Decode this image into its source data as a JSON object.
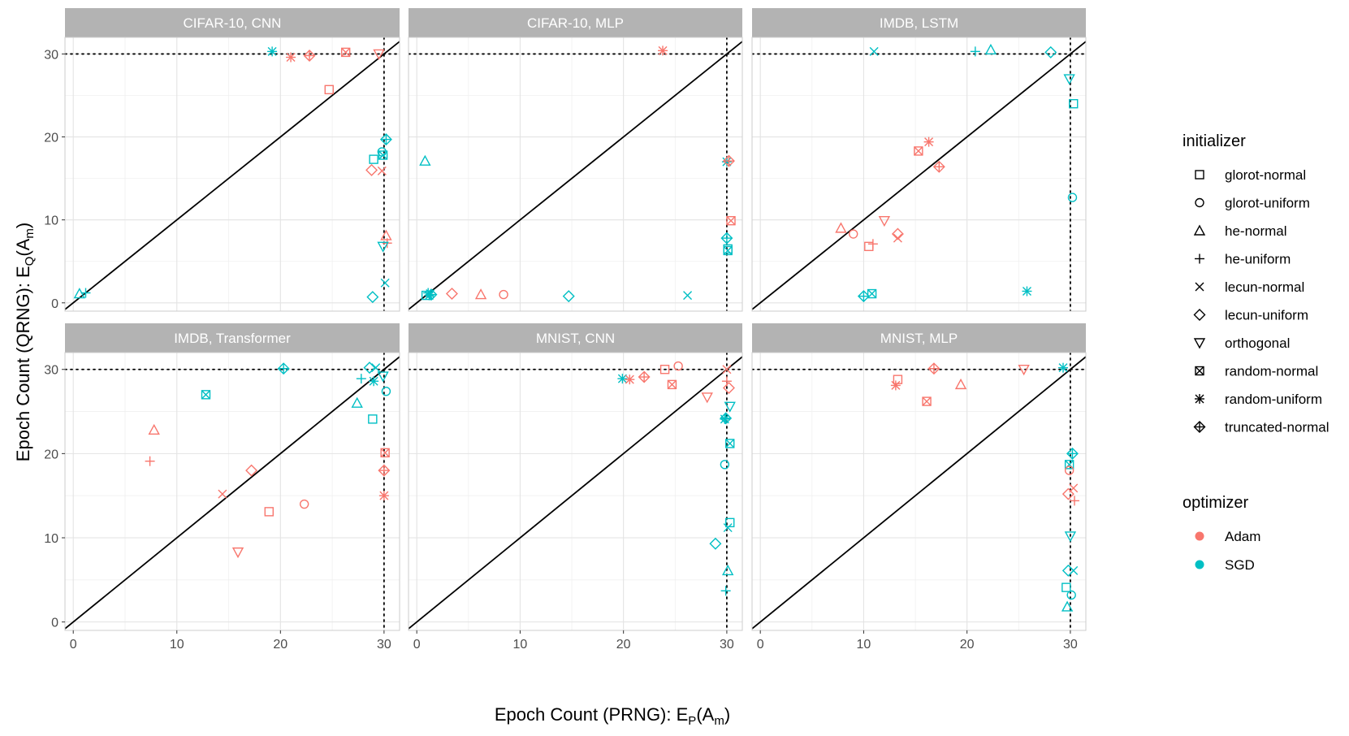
{
  "chart_data": {
    "type": "scatter",
    "xlabel": "Epoch Count (PRNG): E",
    "xlabel_sub": "P",
    "xlabel_arg": "(A",
    "xlabel_arg_sub": "m",
    "xlabel_close": ")",
    "ylabel": "Epoch Count (QRNG): E",
    "ylabel_sub": "Q",
    "ylabel_arg": "(A",
    "ylabel_arg_sub": "m",
    "ylabel_close": ")",
    "xlim": [
      -0.8,
      31.5
    ],
    "ylim": [
      -1,
      32
    ],
    "xticks": [
      0,
      10,
      20,
      30
    ],
    "yticks": [
      0,
      10,
      20,
      30
    ],
    "reference_lines": {
      "diagonal": "y = x",
      "dotted_x": 30,
      "dotted_y": 30
    },
    "legend": {
      "initializer_title": "initializer",
      "initializers": [
        "glorot-normal",
        "glorot-uniform",
        "he-normal",
        "he-uniform",
        "lecun-normal",
        "lecun-uniform",
        "orthogonal",
        "random-normal",
        "random-uniform",
        "truncated-normal"
      ],
      "optimizer_title": "optimizer",
      "optimizers": [
        {
          "name": "Adam",
          "color": "#F8766D"
        },
        {
          "name": "SGD",
          "color": "#00BFC4"
        }
      ]
    },
    "panels": [
      {
        "title": "CIFAR-10, CNN",
        "points": [
          {
            "x": 19.2,
            "y": 30.3,
            "init": "random-uniform",
            "opt": "SGD"
          },
          {
            "x": 21,
            "y": 29.6,
            "init": "random-uniform",
            "opt": "Adam"
          },
          {
            "x": 22.8,
            "y": 29.8,
            "init": "truncated-normal",
            "opt": "Adam"
          },
          {
            "x": 26.3,
            "y": 30.2,
            "init": "random-normal",
            "opt": "Adam"
          },
          {
            "x": 29.5,
            "y": 30,
            "init": "orthogonal",
            "opt": "Adam"
          },
          {
            "x": 24.7,
            "y": 25.7,
            "init": "glorot-normal",
            "opt": "Adam"
          },
          {
            "x": 29,
            "y": 17.3,
            "init": "glorot-normal",
            "opt": "SGD"
          },
          {
            "x": 29.8,
            "y": 18.2,
            "init": "glorot-uniform",
            "opt": "SGD"
          },
          {
            "x": 29.9,
            "y": 17.8,
            "init": "random-normal",
            "opt": "SGD"
          },
          {
            "x": 30.2,
            "y": 19.7,
            "init": "truncated-normal",
            "opt": "SGD"
          },
          {
            "x": 28.8,
            "y": 16,
            "init": "lecun-uniform",
            "opt": "Adam"
          },
          {
            "x": 29.8,
            "y": 15.9,
            "init": "lecun-normal",
            "opt": "Adam"
          },
          {
            "x": 30.2,
            "y": 8.1,
            "init": "he-normal",
            "opt": "Adam"
          },
          {
            "x": 30.3,
            "y": 7.2,
            "init": "he-uniform",
            "opt": "Adam"
          },
          {
            "x": 29.9,
            "y": 6.8,
            "init": "orthogonal",
            "opt": "SGD"
          },
          {
            "x": 30.1,
            "y": 2.4,
            "init": "lecun-normal",
            "opt": "SGD"
          },
          {
            "x": 28.9,
            "y": 0.7,
            "init": "lecun-uniform",
            "opt": "SGD"
          },
          {
            "x": 0.6,
            "y": 1.1,
            "init": "he-normal",
            "opt": "SGD"
          },
          {
            "x": 1.2,
            "y": 1.2,
            "init": "he-uniform",
            "opt": "SGD"
          }
        ]
      },
      {
        "title": "CIFAR-10, MLP",
        "points": [
          {
            "x": 23.8,
            "y": 30.4,
            "init": "random-uniform",
            "opt": "Adam"
          },
          {
            "x": 0.8,
            "y": 17.1,
            "init": "he-normal",
            "opt": "SGD"
          },
          {
            "x": 30,
            "y": 17,
            "init": "random-uniform",
            "opt": "SGD"
          },
          {
            "x": 30.2,
            "y": 17.1,
            "init": "truncated-normal",
            "opt": "Adam"
          },
          {
            "x": 30.4,
            "y": 9.9,
            "init": "random-normal",
            "opt": "Adam"
          },
          {
            "x": 30,
            "y": 7.8,
            "init": "truncated-normal",
            "opt": "SGD"
          },
          {
            "x": 30.1,
            "y": 6.3,
            "init": "random-normal",
            "opt": "SGD"
          },
          {
            "x": 30.1,
            "y": 6.5,
            "init": "glorot-normal",
            "opt": "SGD"
          },
          {
            "x": 3.4,
            "y": 1.1,
            "init": "lecun-uniform",
            "opt": "Adam"
          },
          {
            "x": 6.2,
            "y": 1,
            "init": "he-normal",
            "opt": "Adam"
          },
          {
            "x": 8.4,
            "y": 1,
            "init": "glorot-uniform",
            "opt": "Adam"
          },
          {
            "x": 14.7,
            "y": 0.8,
            "init": "lecun-uniform",
            "opt": "SGD"
          },
          {
            "x": 26.2,
            "y": 0.9,
            "init": "lecun-normal",
            "opt": "SGD"
          },
          {
            "x": 0.9,
            "y": 0.9,
            "init": "glorot-normal",
            "opt": "SGD"
          },
          {
            "x": 1.1,
            "y": 1.2,
            "init": "he-uniform",
            "opt": "SGD"
          },
          {
            "x": 1.2,
            "y": 0.9,
            "init": "random-uniform",
            "opt": "SGD"
          },
          {
            "x": 1.4,
            "y": 1,
            "init": "truncated-normal",
            "opt": "SGD"
          },
          {
            "x": 1.3,
            "y": 1.1,
            "init": "lecun-normal",
            "opt": "SGD"
          }
        ]
      },
      {
        "title": "IMDB, LSTM",
        "points": [
          {
            "x": 11,
            "y": 30.3,
            "init": "lecun-normal",
            "opt": "SGD"
          },
          {
            "x": 20.8,
            "y": 30.3,
            "init": "he-uniform",
            "opt": "SGD"
          },
          {
            "x": 22.3,
            "y": 30.5,
            "init": "he-normal",
            "opt": "SGD"
          },
          {
            "x": 28.1,
            "y": 30.2,
            "init": "lecun-uniform",
            "opt": "SGD"
          },
          {
            "x": 29.9,
            "y": 27,
            "init": "orthogonal",
            "opt": "SGD"
          },
          {
            "x": 30.3,
            "y": 24,
            "init": "glorot-normal",
            "opt": "SGD"
          },
          {
            "x": 16.3,
            "y": 19.4,
            "init": "random-uniform",
            "opt": "Adam"
          },
          {
            "x": 15.3,
            "y": 18.3,
            "init": "random-normal",
            "opt": "Adam"
          },
          {
            "x": 17.3,
            "y": 16.4,
            "init": "truncated-normal",
            "opt": "Adam"
          },
          {
            "x": 30.2,
            "y": 12.7,
            "init": "glorot-uniform",
            "opt": "SGD"
          },
          {
            "x": 12,
            "y": 9.9,
            "init": "orthogonal",
            "opt": "Adam"
          },
          {
            "x": 7.8,
            "y": 9,
            "init": "he-normal",
            "opt": "Adam"
          },
          {
            "x": 9,
            "y": 8.3,
            "init": "glorot-uniform",
            "opt": "Adam"
          },
          {
            "x": 13.3,
            "y": 8.3,
            "init": "lecun-uniform",
            "opt": "Adam"
          },
          {
            "x": 13.3,
            "y": 7.8,
            "init": "lecun-normal",
            "opt": "Adam"
          },
          {
            "x": 10.9,
            "y": 7.1,
            "init": "he-uniform",
            "opt": "Adam"
          },
          {
            "x": 10.5,
            "y": 6.8,
            "init": "glorot-normal",
            "opt": "Adam"
          },
          {
            "x": 10.8,
            "y": 1.1,
            "init": "random-normal",
            "opt": "SGD"
          },
          {
            "x": 10,
            "y": 0.8,
            "init": "truncated-normal",
            "opt": "SGD"
          },
          {
            "x": 25.8,
            "y": 1.4,
            "init": "random-uniform",
            "opt": "SGD"
          }
        ]
      },
      {
        "title": "IMDB, Transformer",
        "points": [
          {
            "x": 20.3,
            "y": 30.1,
            "init": "truncated-normal",
            "opt": "SGD"
          },
          {
            "x": 28.6,
            "y": 30.2,
            "init": "lecun-uniform",
            "opt": "SGD"
          },
          {
            "x": 29.2,
            "y": 30.2,
            "init": "lecun-normal",
            "opt": "SGD"
          },
          {
            "x": 29.9,
            "y": 29.2,
            "init": "orthogonal",
            "opt": "SGD"
          },
          {
            "x": 27.8,
            "y": 28.9,
            "init": "he-uniform",
            "opt": "SGD"
          },
          {
            "x": 29,
            "y": 28.6,
            "init": "random-uniform",
            "opt": "SGD"
          },
          {
            "x": 30.2,
            "y": 27.4,
            "init": "glorot-uniform",
            "opt": "SGD"
          },
          {
            "x": 12.8,
            "y": 27,
            "init": "random-normal",
            "opt": "SGD"
          },
          {
            "x": 27.4,
            "y": 26,
            "init": "he-normal",
            "opt": "SGD"
          },
          {
            "x": 28.9,
            "y": 24.1,
            "init": "glorot-normal",
            "opt": "SGD"
          },
          {
            "x": 7.8,
            "y": 22.8,
            "init": "he-normal",
            "opt": "Adam"
          },
          {
            "x": 30.1,
            "y": 20.1,
            "init": "random-normal",
            "opt": "Adam"
          },
          {
            "x": 7.4,
            "y": 19.1,
            "init": "he-uniform",
            "opt": "Adam"
          },
          {
            "x": 17.2,
            "y": 18,
            "init": "lecun-uniform",
            "opt": "Adam"
          },
          {
            "x": 30,
            "y": 18,
            "init": "truncated-normal",
            "opt": "Adam"
          },
          {
            "x": 14.4,
            "y": 15.2,
            "init": "lecun-normal",
            "opt": "Adam"
          },
          {
            "x": 30,
            "y": 15,
            "init": "random-uniform",
            "opt": "Adam"
          },
          {
            "x": 22.3,
            "y": 14,
            "init": "glorot-uniform",
            "opt": "Adam"
          },
          {
            "x": 18.9,
            "y": 13.1,
            "init": "glorot-normal",
            "opt": "Adam"
          },
          {
            "x": 15.9,
            "y": 8.3,
            "init": "orthogonal",
            "opt": "Adam"
          }
        ]
      },
      {
        "title": "MNIST, CNN",
        "points": [
          {
            "x": 19.9,
            "y": 28.9,
            "init": "random-uniform",
            "opt": "SGD"
          },
          {
            "x": 20.6,
            "y": 28.8,
            "init": "random-uniform",
            "opt": "Adam"
          },
          {
            "x": 22,
            "y": 29.1,
            "init": "truncated-normal",
            "opt": "Adam"
          },
          {
            "x": 24,
            "y": 30,
            "init": "glorot-normal",
            "opt": "Adam"
          },
          {
            "x": 25.3,
            "y": 30.4,
            "init": "glorot-uniform",
            "opt": "Adam"
          },
          {
            "x": 24.7,
            "y": 28.2,
            "init": "random-normal",
            "opt": "Adam"
          },
          {
            "x": 28.1,
            "y": 26.7,
            "init": "orthogonal",
            "opt": "Adam"
          },
          {
            "x": 30,
            "y": 30,
            "init": "lecun-normal",
            "opt": "Adam"
          },
          {
            "x": 30,
            "y": 28.6,
            "init": "he-uniform",
            "opt": "Adam"
          },
          {
            "x": 30.2,
            "y": 27.8,
            "init": "lecun-uniform",
            "opt": "Adam"
          },
          {
            "x": 30.3,
            "y": 25.6,
            "init": "orthogonal",
            "opt": "SGD"
          },
          {
            "x": 29.8,
            "y": 24.1,
            "init": "random-uniform",
            "opt": "SGD"
          },
          {
            "x": 29.9,
            "y": 24.2,
            "init": "truncated-normal",
            "opt": "SGD"
          },
          {
            "x": 30.3,
            "y": 21.2,
            "init": "random-normal",
            "opt": "SGD"
          },
          {
            "x": 29.8,
            "y": 18.7,
            "init": "glorot-uniform",
            "opt": "SGD"
          },
          {
            "x": 30.3,
            "y": 11.8,
            "init": "glorot-normal",
            "opt": "SGD"
          },
          {
            "x": 30.1,
            "y": 11.2,
            "init": "lecun-normal",
            "opt": "SGD"
          },
          {
            "x": 28.9,
            "y": 9.3,
            "init": "lecun-uniform",
            "opt": "SGD"
          },
          {
            "x": 30.1,
            "y": 6.1,
            "init": "he-normal",
            "opt": "SGD"
          },
          {
            "x": 29.9,
            "y": 3.7,
            "init": "he-uniform",
            "opt": "SGD"
          }
        ]
      },
      {
        "title": "MNIST, MLP",
        "points": [
          {
            "x": 16.8,
            "y": 30.1,
            "init": "truncated-normal",
            "opt": "Adam"
          },
          {
            "x": 25.5,
            "y": 30,
            "init": "orthogonal",
            "opt": "Adam"
          },
          {
            "x": 29.3,
            "y": 30.2,
            "init": "random-uniform",
            "opt": "SGD"
          },
          {
            "x": 13.3,
            "y": 28.8,
            "init": "glorot-normal",
            "opt": "Adam"
          },
          {
            "x": 13.1,
            "y": 28.1,
            "init": "random-uniform",
            "opt": "Adam"
          },
          {
            "x": 19.4,
            "y": 28.2,
            "init": "he-normal",
            "opt": "Adam"
          },
          {
            "x": 16.1,
            "y": 26.2,
            "init": "random-normal",
            "opt": "Adam"
          },
          {
            "x": 30.2,
            "y": 20,
            "init": "truncated-normal",
            "opt": "SGD"
          },
          {
            "x": 29.9,
            "y": 18.7,
            "init": "random-normal",
            "opt": "SGD"
          },
          {
            "x": 29.9,
            "y": 18,
            "init": "glorot-uniform",
            "opt": "Adam"
          },
          {
            "x": 30.3,
            "y": 15.9,
            "init": "lecun-normal",
            "opt": "Adam"
          },
          {
            "x": 29.8,
            "y": 15.2,
            "init": "lecun-uniform",
            "opt": "Adam"
          },
          {
            "x": 30.4,
            "y": 14.4,
            "init": "he-uniform",
            "opt": "Adam"
          },
          {
            "x": 30,
            "y": 10.2,
            "init": "orthogonal",
            "opt": "SGD"
          },
          {
            "x": 29.8,
            "y": 6.1,
            "init": "lecun-uniform",
            "opt": "SGD"
          },
          {
            "x": 30.3,
            "y": 6.1,
            "init": "lecun-normal",
            "opt": "SGD"
          },
          {
            "x": 29.6,
            "y": 4.1,
            "init": "glorot-normal",
            "opt": "SGD"
          },
          {
            "x": 30.1,
            "y": 3.2,
            "init": "glorot-uniform",
            "opt": "SGD"
          },
          {
            "x": 29.7,
            "y": 1.8,
            "init": "he-normal",
            "opt": "SGD"
          }
        ]
      }
    ]
  }
}
